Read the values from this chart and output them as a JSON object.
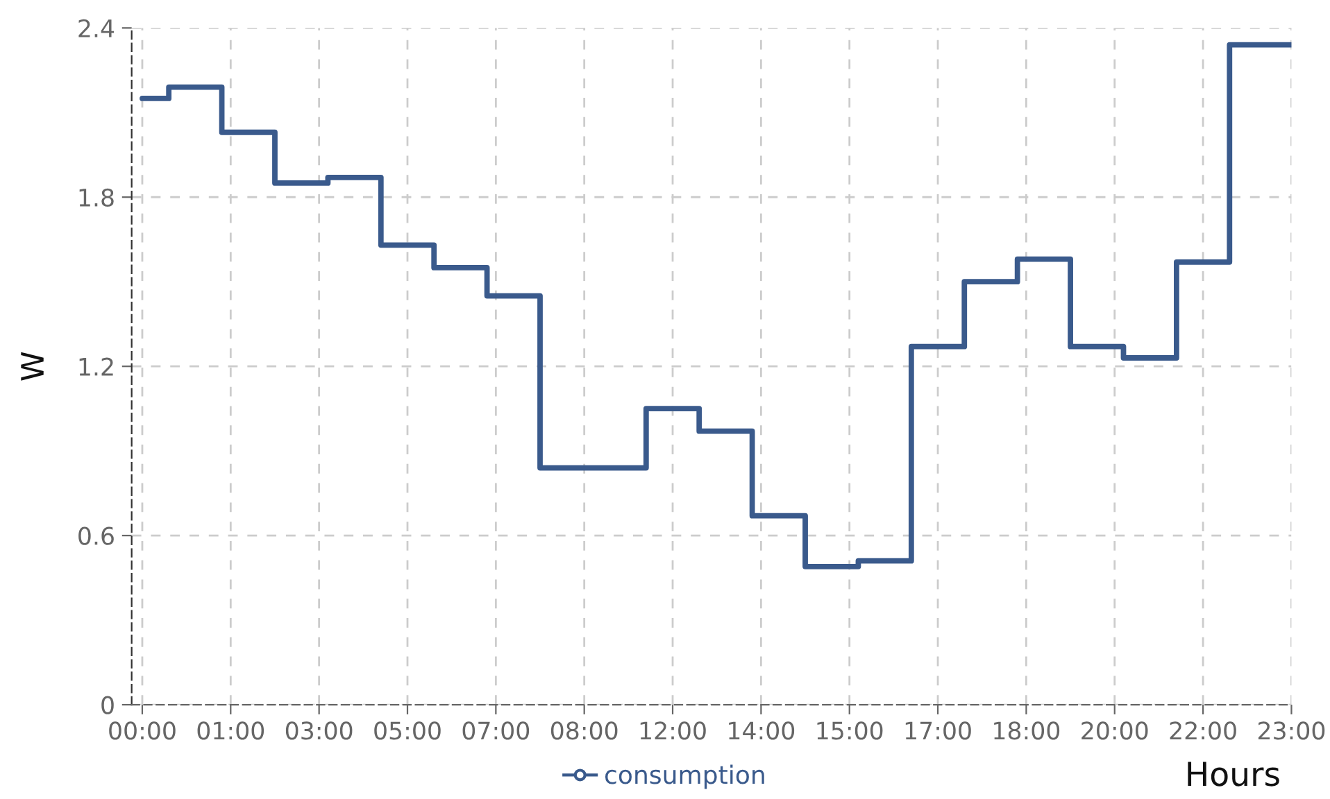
{
  "chart_data": {
    "type": "step",
    "xlabel": "Hours",
    "ylabel": "W",
    "categories": [
      "00:00",
      null,
      null,
      null,
      null,
      "01:00",
      null,
      null,
      null,
      null,
      "03:00",
      null,
      null,
      null,
      null,
      "05:00",
      null,
      null,
      null,
      null,
      "07:00",
      null,
      null,
      null,
      null,
      "08:00",
      null,
      null,
      null,
      null,
      "12:00",
      null,
      null,
      null,
      null,
      "14:00",
      null,
      null,
      null,
      null,
      "15:00",
      null,
      null,
      null,
      null,
      "17:00",
      null,
      null,
      null,
      null,
      "18:00",
      null,
      null,
      null,
      null,
      "20:00",
      null,
      null,
      null,
      null,
      "22:00",
      null,
      null,
      null,
      null,
      "23:00"
    ],
    "series": [
      {
        "name": "consumption",
        "color": "#3a5a8c",
        "values": [
          2.15,
          2.15,
          2.19,
          2.19,
          2.19,
          2.03,
          2.03,
          2.03,
          1.85,
          1.85,
          1.85,
          1.87,
          1.87,
          1.87,
          1.63,
          1.63,
          1.63,
          1.55,
          1.55,
          1.55,
          1.45,
          1.45,
          1.45,
          0.84,
          0.84,
          0.84,
          0.84,
          0.84,
          0.84,
          1.05,
          1.05,
          1.05,
          0.97,
          0.97,
          0.97,
          0.67,
          0.67,
          0.67,
          0.49,
          0.49,
          0.49,
          0.51,
          0.51,
          0.51,
          1.27,
          1.27,
          1.27,
          1.5,
          1.5,
          1.5,
          1.58,
          1.58,
          1.58,
          1.27,
          1.27,
          1.27,
          1.23,
          1.23,
          1.23,
          1.57,
          1.57,
          1.57,
          2.34,
          2.34,
          2.34,
          2.34
        ]
      }
    ],
    "ylim": [
      0,
      2.4
    ],
    "yticks": [
      0,
      0.6,
      1.2,
      1.8,
      2.4
    ],
    "grid": true,
    "legend": "bottom",
    "line_style": "solid"
  }
}
